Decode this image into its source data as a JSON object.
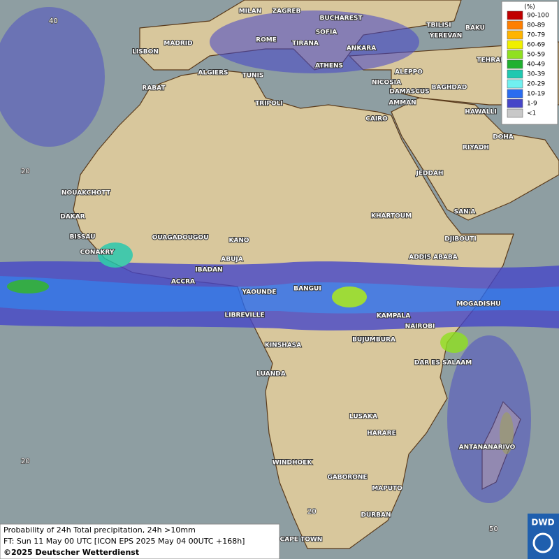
{
  "legend": {
    "title": "(%)",
    "items": [
      "90-100",
      "80-89",
      "70-79",
      "60-69",
      "50-59",
      "40-49",
      "30-39",
      "20-29",
      "10-19",
      "1-9",
      "<1"
    ],
    "colors": [
      "#c00000",
      "#ff7f00",
      "#ffb400",
      "#f0f000",
      "#90e020",
      "#20b030",
      "#20c8b0",
      "#70f0f0",
      "#2a6cf0",
      "#4646c8",
      "#c8c8c8"
    ]
  },
  "cities": [
    "MILAN",
    "ZAGREB",
    "BUCHAREST",
    "SOFIA",
    "TBILISI",
    "BAKU",
    "MADRID",
    "ROME",
    "TIRANA",
    "YEREVAN",
    "LISBON",
    "ANKARA",
    "TEHRAN",
    "ALGIERS",
    "TUNIS",
    "ATHENS",
    "ALEPPO",
    "RABAT",
    "NICOSIA",
    "BAGHDAD",
    "DAMASCUS",
    "TRIPOLI",
    "AMMAN",
    "HAWALLI",
    "CAIRO",
    "DOHA",
    "RIYADH",
    "NOUAKCHOTT",
    "JEDDAH",
    "DAKAR",
    "KHARTOUM",
    "SAN'A",
    "BISSAU",
    "OUAGADOUGOU",
    "KANO",
    "DJIBOUTI",
    "CONAKRY",
    "ABUJA",
    "ADDIS ABABA",
    "IBADAN",
    "ACCRA",
    "YAOUNDE",
    "BANGUI",
    "MOGADISHU",
    "LIBREVILLE",
    "KAMPALA",
    "NAIROBI",
    "KINSHASA",
    "BUJUMBURA",
    "DAR ES SALAAM",
    "LUANDA",
    "LUSAKA",
    "HARARE",
    "ANTANANARIVO",
    "WINDHOEK",
    "GABORONE",
    "MAPUTO",
    "DURBAN",
    "CAPE TOWN"
  ],
  "grid_labels": [
    "40",
    "20",
    "20",
    "20",
    "50"
  ],
  "footer": {
    "line1": "Probability of 24h Total precipitation, 24h >10mm",
    "line2": "FT: Sun 11 May 00 UTC [ICON EPS 2025 May 04 00UTC +168h]",
    "copyright": "©2025 Deutscher Wetterdienst"
  },
  "logo": "DWD"
}
